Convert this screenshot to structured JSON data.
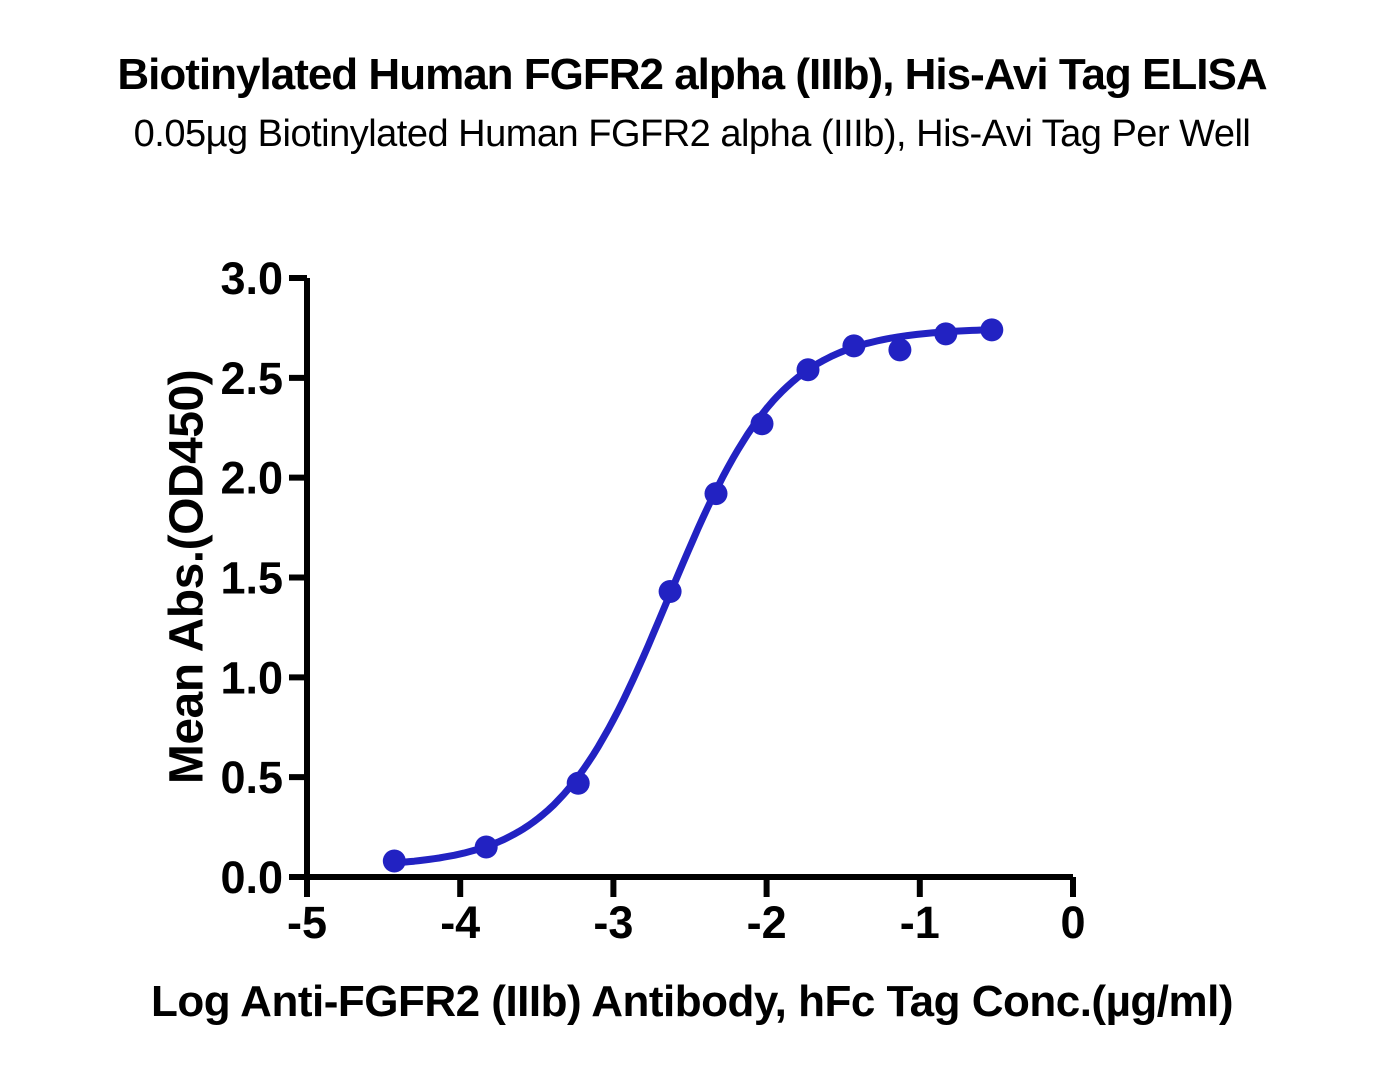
{
  "chart_data": {
    "type": "scatter",
    "title": "Biotinylated Human FGFR2 alpha (IIIb), His-Avi Tag ELISA",
    "subtitle": "0.05µg Biotinylated Human FGFR2 alpha (IIIb), His-Avi Tag Per Well",
    "xlabel": "Log Anti-FGFR2 (IIIb) Antibody, hFc Tag Conc.(µg/ml)",
    "ylabel": "Mean Abs.(OD450)",
    "xlim": [
      -5,
      0
    ],
    "ylim": [
      0,
      3
    ],
    "x_ticks": [
      -5,
      -4,
      -3,
      -2,
      -1,
      0
    ],
    "x_tick_labels": [
      "-5",
      "-4",
      "-3",
      "-2",
      "-1",
      "0"
    ],
    "y_ticks": [
      0,
      0.5,
      1,
      1.5,
      2,
      2.5,
      3
    ],
    "y_tick_labels": [
      "0.0",
      "0.5",
      "1.0",
      "1.5",
      "2.0",
      "2.5",
      "3.0"
    ],
    "grid": false,
    "legend": "none",
    "series": [
      {
        "marker": "circle",
        "color": "#2222C2",
        "points": [
          {
            "x": -4.43,
            "y": 0.08
          },
          {
            "x": -3.83,
            "y": 0.15
          },
          {
            "x": -3.23,
            "y": 0.47
          },
          {
            "x": -2.63,
            "y": 1.43
          },
          {
            "x": -2.33,
            "y": 1.92
          },
          {
            "x": -2.03,
            "y": 2.27
          },
          {
            "x": -1.73,
            "y": 2.54
          },
          {
            "x": -1.43,
            "y": 2.66
          },
          {
            "x": -1.13,
            "y": 2.64
          },
          {
            "x": -0.83,
            "y": 2.72
          },
          {
            "x": -0.53,
            "y": 2.74
          }
        ],
        "fit": {
          "model": "4PL",
          "bottom": 0.05,
          "top": 2.75,
          "logEC50": -2.64,
          "hillslope": 1.18
        }
      }
    ],
    "colors": {
      "curve": "#2222C2",
      "axis": "#000000",
      "text": "#000000",
      "background": "#FFFFFF"
    }
  }
}
